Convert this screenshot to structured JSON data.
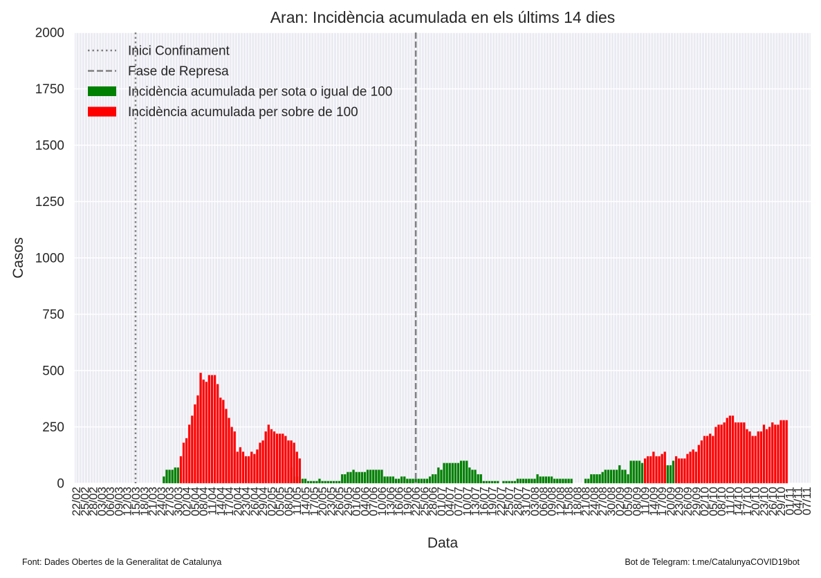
{
  "chart_data": {
    "type": "bar",
    "title": "Aran: Incidència acumulada en els últims 14 dies",
    "xlabel": "Data",
    "ylabel": "Casos",
    "ylim": [
      0,
      2000
    ],
    "yticks": [
      0,
      250,
      500,
      750,
      1000,
      1250,
      1500,
      1750,
      2000
    ],
    "grid": true,
    "legend_placement": "top-left",
    "x_start": "2020-02-22",
    "x_end": "2020-11-08",
    "xtick_labels": [
      "22/02",
      "25/02",
      "28/02",
      "03/03",
      "06/03",
      "09/03",
      "12/03",
      "15/03",
      "18/03",
      "21/03",
      "24/03",
      "27/03",
      "30/03",
      "02/04",
      "05/04",
      "08/04",
      "11/04",
      "14/04",
      "17/04",
      "20/04",
      "23/04",
      "26/04",
      "29/04",
      "02/05",
      "05/05",
      "08/05",
      "11/05",
      "14/05",
      "17/05",
      "20/05",
      "23/05",
      "26/05",
      "29/05",
      "01/06",
      "04/06",
      "07/06",
      "10/06",
      "13/06",
      "16/06",
      "19/06",
      "22/06",
      "25/06",
      "28/06",
      "01/07",
      "04/07",
      "07/07",
      "10/07",
      "13/07",
      "16/07",
      "19/07",
      "22/07",
      "25/07",
      "28/07",
      "31/07",
      "03/08",
      "06/08",
      "09/08",
      "12/08",
      "15/08",
      "18/08",
      "21/08",
      "24/08",
      "27/08",
      "30/08",
      "02/09",
      "05/09",
      "08/09",
      "11/09",
      "14/09",
      "17/09",
      "20/09",
      "23/09",
      "26/09",
      "29/09",
      "02/10",
      "05/10",
      "08/10",
      "11/10",
      "14/10",
      "17/10",
      "20/10",
      "23/10",
      "26/10",
      "29/10",
      "01/11",
      "04/11",
      "07/11"
    ],
    "vlines": [
      {
        "label": "Inici Confinament",
        "date": "2020-03-14",
        "style": "dotted",
        "color": "#808080"
      },
      {
        "label": "Fase de Represa",
        "date": "2020-06-21",
        "style": "dashed",
        "color": "#808080"
      }
    ],
    "series": [
      {
        "name": "Incidència acumulada per sota o igual de 100",
        "color": "#008000",
        "points": [
          [
            "2020-03-24",
            30
          ],
          [
            "2020-03-25",
            60
          ],
          [
            "2020-03-26",
            60
          ],
          [
            "2020-03-27",
            60
          ],
          [
            "2020-03-28",
            70
          ],
          [
            "2020-03-29",
            70
          ],
          [
            "2020-05-08",
            70
          ],
          [
            "2020-05-09",
            30
          ],
          [
            "2020-05-10",
            30
          ],
          [
            "2020-05-11",
            30
          ],
          [
            "2020-05-12",
            20
          ],
          [
            "2020-05-13",
            20
          ],
          [
            "2020-05-14",
            10
          ],
          [
            "2020-05-15",
            10
          ],
          [
            "2020-05-16",
            10
          ],
          [
            "2020-05-17",
            10
          ],
          [
            "2020-05-18",
            20
          ],
          [
            "2020-05-19",
            10
          ],
          [
            "2020-05-20",
            10
          ],
          [
            "2020-05-21",
            10
          ],
          [
            "2020-05-22",
            10
          ],
          [
            "2020-05-23",
            10
          ],
          [
            "2020-05-24",
            10
          ],
          [
            "2020-05-25",
            10
          ],
          [
            "2020-05-26",
            40
          ],
          [
            "2020-05-27",
            40
          ],
          [
            "2020-05-28",
            50
          ],
          [
            "2020-05-29",
            50
          ],
          [
            "2020-05-30",
            60
          ],
          [
            "2020-05-31",
            50
          ],
          [
            "2020-06-01",
            50
          ],
          [
            "2020-06-02",
            50
          ],
          [
            "2020-06-03",
            50
          ],
          [
            "2020-06-04",
            60
          ],
          [
            "2020-06-05",
            60
          ],
          [
            "2020-06-06",
            60
          ],
          [
            "2020-06-07",
            60
          ],
          [
            "2020-06-08",
            60
          ],
          [
            "2020-06-09",
            60
          ],
          [
            "2020-06-10",
            30
          ],
          [
            "2020-06-11",
            30
          ],
          [
            "2020-06-12",
            30
          ],
          [
            "2020-06-13",
            30
          ],
          [
            "2020-06-14",
            20
          ],
          [
            "2020-06-15",
            20
          ],
          [
            "2020-06-16",
            30
          ],
          [
            "2020-06-17",
            30
          ],
          [
            "2020-06-18",
            20
          ],
          [
            "2020-06-19",
            20
          ],
          [
            "2020-06-20",
            20
          ],
          [
            "2020-06-21",
            20
          ],
          [
            "2020-06-22",
            20
          ],
          [
            "2020-06-23",
            20
          ],
          [
            "2020-06-24",
            20
          ],
          [
            "2020-06-25",
            20
          ],
          [
            "2020-06-26",
            30
          ],
          [
            "2020-06-27",
            40
          ],
          [
            "2020-06-28",
            40
          ],
          [
            "2020-06-29",
            70
          ],
          [
            "2020-06-30",
            60
          ],
          [
            "2020-07-01",
            90
          ],
          [
            "2020-07-02",
            90
          ],
          [
            "2020-07-03",
            90
          ],
          [
            "2020-07-04",
            90
          ],
          [
            "2020-07-05",
            90
          ],
          [
            "2020-07-06",
            90
          ],
          [
            "2020-07-07",
            100
          ],
          [
            "2020-07-08",
            100
          ],
          [
            "2020-07-09",
            100
          ],
          [
            "2020-07-10",
            70
          ],
          [
            "2020-07-11",
            60
          ],
          [
            "2020-07-12",
            60
          ],
          [
            "2020-07-13",
            40
          ],
          [
            "2020-07-14",
            40
          ],
          [
            "2020-07-15",
            10
          ],
          [
            "2020-07-16",
            10
          ],
          [
            "2020-07-17",
            10
          ],
          [
            "2020-07-18",
            10
          ],
          [
            "2020-07-19",
            10
          ],
          [
            "2020-07-20",
            10
          ],
          [
            "2020-07-22",
            10
          ],
          [
            "2020-07-23",
            10
          ],
          [
            "2020-07-24",
            10
          ],
          [
            "2020-07-25",
            10
          ],
          [
            "2020-07-26",
            10
          ],
          [
            "2020-07-27",
            20
          ],
          [
            "2020-07-28",
            20
          ],
          [
            "2020-07-29",
            20
          ],
          [
            "2020-07-30",
            20
          ],
          [
            "2020-07-31",
            20
          ],
          [
            "2020-08-01",
            20
          ],
          [
            "2020-08-02",
            20
          ],
          [
            "2020-08-03",
            40
          ],
          [
            "2020-08-04",
            30
          ],
          [
            "2020-08-05",
            30
          ],
          [
            "2020-08-06",
            30
          ],
          [
            "2020-08-07",
            30
          ],
          [
            "2020-08-08",
            30
          ],
          [
            "2020-08-09",
            20
          ],
          [
            "2020-08-10",
            20
          ],
          [
            "2020-08-11",
            20
          ],
          [
            "2020-08-12",
            20
          ],
          [
            "2020-08-13",
            20
          ],
          [
            "2020-08-14",
            20
          ],
          [
            "2020-08-15",
            20
          ],
          [
            "2020-08-20",
            20
          ],
          [
            "2020-08-21",
            20
          ],
          [
            "2020-08-22",
            40
          ],
          [
            "2020-08-23",
            40
          ],
          [
            "2020-08-24",
            40
          ],
          [
            "2020-08-25",
            40
          ],
          [
            "2020-08-26",
            50
          ],
          [
            "2020-08-27",
            60
          ],
          [
            "2020-08-28",
            60
          ],
          [
            "2020-08-29",
            60
          ],
          [
            "2020-08-30",
            60
          ],
          [
            "2020-08-31",
            60
          ],
          [
            "2020-09-01",
            80
          ],
          [
            "2020-09-02",
            60
          ],
          [
            "2020-09-03",
            60
          ],
          [
            "2020-09-04",
            40
          ],
          [
            "2020-09-05",
            100
          ],
          [
            "2020-09-06",
            100
          ],
          [
            "2020-09-07",
            100
          ],
          [
            "2020-09-08",
            100
          ],
          [
            "2020-09-09",
            90
          ],
          [
            "2020-09-17",
            80
          ],
          [
            "2020-09-18",
            80
          ],
          [
            "2020-09-19",
            80
          ],
          [
            "2020-09-20",
            100
          ]
        ]
      },
      {
        "name": "Incidència acumulada per sobre de 100",
        "color": "#ff0000",
        "points": [
          [
            "2020-03-30",
            120
          ],
          [
            "2020-03-31",
            180
          ],
          [
            "2020-04-01",
            200
          ],
          [
            "2020-04-02",
            260
          ],
          [
            "2020-04-03",
            300
          ],
          [
            "2020-04-04",
            350
          ],
          [
            "2020-04-05",
            390
          ],
          [
            "2020-04-06",
            490
          ],
          [
            "2020-04-07",
            460
          ],
          [
            "2020-04-08",
            450
          ],
          [
            "2020-04-09",
            480
          ],
          [
            "2020-04-10",
            480
          ],
          [
            "2020-04-11",
            480
          ],
          [
            "2020-04-12",
            440
          ],
          [
            "2020-04-13",
            380
          ],
          [
            "2020-04-14",
            370
          ],
          [
            "2020-04-15",
            330
          ],
          [
            "2020-04-16",
            290
          ],
          [
            "2020-04-17",
            250
          ],
          [
            "2020-04-18",
            230
          ],
          [
            "2020-04-19",
            140
          ],
          [
            "2020-04-20",
            160
          ],
          [
            "2020-04-21",
            140
          ],
          [
            "2020-04-22",
            120
          ],
          [
            "2020-04-23",
            120
          ],
          [
            "2020-04-24",
            140
          ],
          [
            "2020-04-25",
            130
          ],
          [
            "2020-04-26",
            150
          ],
          [
            "2020-04-27",
            180
          ],
          [
            "2020-04-28",
            190
          ],
          [
            "2020-04-29",
            230
          ],
          [
            "2020-04-30",
            260
          ],
          [
            "2020-05-01",
            240
          ],
          [
            "2020-05-02",
            230
          ],
          [
            "2020-05-03",
            220
          ],
          [
            "2020-05-04",
            220
          ],
          [
            "2020-05-05",
            220
          ],
          [
            "2020-05-06",
            210
          ],
          [
            "2020-05-07",
            190
          ],
          [
            "2020-05-08",
            190
          ],
          [
            "2020-05-09",
            180
          ],
          [
            "2020-05-10",
            140
          ],
          [
            "2020-05-11",
            110
          ],
          [
            "2020-09-10",
            110
          ],
          [
            "2020-09-11",
            120
          ],
          [
            "2020-09-12",
            120
          ],
          [
            "2020-09-13",
            140
          ],
          [
            "2020-09-14",
            120
          ],
          [
            "2020-09-15",
            120
          ],
          [
            "2020-09-16",
            130
          ],
          [
            "2020-09-17",
            140
          ],
          [
            "2020-09-21",
            120
          ],
          [
            "2020-09-22",
            110
          ],
          [
            "2020-09-23",
            110
          ],
          [
            "2020-09-24",
            110
          ],
          [
            "2020-09-25",
            130
          ],
          [
            "2020-09-26",
            140
          ],
          [
            "2020-09-27",
            150
          ],
          [
            "2020-09-28",
            140
          ],
          [
            "2020-09-29",
            170
          ],
          [
            "2020-09-30",
            190
          ],
          [
            "2020-10-01",
            210
          ],
          [
            "2020-10-02",
            210
          ],
          [
            "2020-10-03",
            220
          ],
          [
            "2020-10-04",
            210
          ],
          [
            "2020-10-05",
            250
          ],
          [
            "2020-10-06",
            260
          ],
          [
            "2020-10-07",
            260
          ],
          [
            "2020-10-08",
            270
          ],
          [
            "2020-10-09",
            290
          ],
          [
            "2020-10-10",
            300
          ],
          [
            "2020-10-11",
            300
          ],
          [
            "2020-10-12",
            270
          ],
          [
            "2020-10-13",
            270
          ],
          [
            "2020-10-14",
            270
          ],
          [
            "2020-10-15",
            270
          ],
          [
            "2020-10-16",
            240
          ],
          [
            "2020-10-17",
            230
          ],
          [
            "2020-10-18",
            210
          ],
          [
            "2020-10-19",
            210
          ],
          [
            "2020-10-20",
            230
          ],
          [
            "2020-10-21",
            230
          ],
          [
            "2020-10-22",
            260
          ],
          [
            "2020-10-23",
            240
          ],
          [
            "2020-10-24",
            250
          ],
          [
            "2020-10-25",
            270
          ],
          [
            "2020-10-26",
            260
          ],
          [
            "2020-10-27",
            260
          ],
          [
            "2020-10-28",
            280
          ],
          [
            "2020-10-29",
            280
          ],
          [
            "2020-10-30",
            280
          ]
        ]
      }
    ]
  },
  "footer": {
    "source": "Font: Dades Obertes de la Generalitat de Catalunya",
    "bot": "Bot de Telegram: t.me/CatalunyaCOVID19bot"
  }
}
